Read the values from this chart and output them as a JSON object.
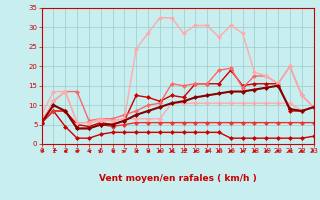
{
  "xlabel": "Vent moyen/en rafales ( km/h )",
  "xlim": [
    0,
    23
  ],
  "ylim": [
    0,
    35
  ],
  "yticks": [
    0,
    5,
    10,
    15,
    20,
    25,
    30,
    35
  ],
  "xticks": [
    0,
    1,
    2,
    3,
    4,
    5,
    6,
    7,
    8,
    9,
    10,
    11,
    12,
    13,
    14,
    15,
    16,
    17,
    18,
    19,
    20,
    21,
    22,
    23
  ],
  "bg_color": "#c8eef0",
  "grid_color": "#99cccc",
  "lines": [
    {
      "x": [
        0,
        1,
        2,
        3,
        4,
        5,
        6,
        7,
        8,
        9,
        10,
        11,
        12,
        13,
        14,
        15,
        16,
        17,
        18,
        19,
        20,
        21,
        22,
        23
      ],
      "y": [
        5.5,
        8.5,
        8.5,
        5.0,
        4.5,
        5.5,
        5.0,
        6.0,
        12.5,
        12.0,
        11.0,
        12.5,
        12.0,
        15.5,
        15.5,
        15.5,
        19.0,
        15.0,
        15.5,
        15.5,
        15.5,
        8.5,
        8.5,
        9.5
      ],
      "color": "#cc0000",
      "lw": 1.0
    },
    {
      "x": [
        0,
        1,
        2,
        3,
        4,
        5,
        6,
        7,
        8,
        9,
        10,
        11,
        12,
        13,
        14,
        15,
        16,
        17,
        18,
        19,
        20,
        21,
        22,
        23
      ],
      "y": [
        5.5,
        8.5,
        4.5,
        1.5,
        1.5,
        2.5,
        3.0,
        3.0,
        3.0,
        3.0,
        3.0,
        3.0,
        3.0,
        3.0,
        3.0,
        3.0,
        1.5,
        1.5,
        1.5,
        1.5,
        1.5,
        1.5,
        1.5,
        2.0
      ],
      "color": "#cc0000",
      "lw": 1.0
    },
    {
      "x": [
        0,
        1,
        2,
        3,
        4,
        5,
        6,
        7,
        8,
        9,
        10,
        11,
        12,
        13,
        14,
        15,
        16,
        17,
        18,
        19,
        20,
        21,
        22,
        23
      ],
      "y": [
        5.5,
        8.5,
        8.5,
        4.0,
        4.0,
        5.0,
        4.5,
        5.0,
        5.5,
        5.5,
        5.5,
        5.5,
        5.5,
        5.5,
        5.5,
        5.5,
        5.5,
        5.5,
        5.5,
        5.5,
        5.5,
        5.5,
        5.5,
        5.5
      ],
      "color": "#ee3333",
      "lw": 1.0
    },
    {
      "x": [
        0,
        1,
        2,
        3,
        4,
        5,
        6,
        7,
        8,
        9,
        10,
        11,
        12,
        13,
        14,
        15,
        16,
        17,
        18,
        19,
        20,
        21,
        22,
        23
      ],
      "y": [
        5.5,
        11.0,
        13.5,
        13.5,
        6.0,
        6.5,
        6.5,
        7.5,
        8.5,
        10.0,
        10.5,
        15.5,
        15.0,
        15.5,
        15.5,
        19.0,
        19.5,
        14.5,
        17.5,
        17.5,
        15.5,
        20.0,
        12.5,
        9.5
      ],
      "color": "#ff6666",
      "lw": 1.0
    },
    {
      "x": [
        0,
        1,
        2,
        3,
        4,
        5,
        6,
        7,
        8,
        9,
        10,
        11,
        12,
        13,
        14,
        15,
        16,
        17,
        18,
        19,
        20,
        21,
        22,
        23
      ],
      "y": [
        7.5,
        13.5,
        13.5,
        5.5,
        5.5,
        6.5,
        6.0,
        6.5,
        6.5,
        6.5,
        6.5,
        10.5,
        10.5,
        10.5,
        10.5,
        10.5,
        10.5,
        10.5,
        10.5,
        10.5,
        10.5,
        10.5,
        8.5,
        9.5
      ],
      "color": "#ffaaaa",
      "lw": 1.0
    },
    {
      "x": [
        0,
        1,
        2,
        3,
        4,
        5,
        6,
        7,
        8,
        9,
        10,
        11,
        12,
        13,
        14,
        15,
        16,
        17,
        18,
        19,
        20,
        21,
        22,
        23
      ],
      "y": [
        5.5,
        11.0,
        13.5,
        5.5,
        5.5,
        6.0,
        6.0,
        6.5,
        24.5,
        28.5,
        32.5,
        32.5,
        28.5,
        30.5,
        30.5,
        27.5,
        30.5,
        28.5,
        18.5,
        17.5,
        15.5,
        20.0,
        12.5,
        9.5
      ],
      "color": "#ffaaaa",
      "lw": 1.0
    },
    {
      "x": [
        0,
        1,
        2,
        3,
        4,
        5,
        6,
        7,
        8,
        9,
        10,
        11,
        12,
        13,
        14,
        15,
        16,
        17,
        18,
        19,
        20,
        21,
        22,
        23
      ],
      "y": [
        5.5,
        10.0,
        8.5,
        4.0,
        4.0,
        5.0,
        5.0,
        6.0,
        7.5,
        8.5,
        9.5,
        10.5,
        11.0,
        12.0,
        12.5,
        13.0,
        13.5,
        13.5,
        14.0,
        14.5,
        15.0,
        9.0,
        8.5,
        9.5
      ],
      "color": "#880000",
      "lw": 1.5
    }
  ],
  "arrow_angles": [
    225,
    210,
    240,
    255,
    315,
    45,
    315,
    45,
    315,
    300,
    270,
    240,
    210,
    240,
    255,
    270,
    255,
    240,
    255,
    255,
    255,
    255,
    270,
    135
  ],
  "arrow_color": "#cc0000"
}
